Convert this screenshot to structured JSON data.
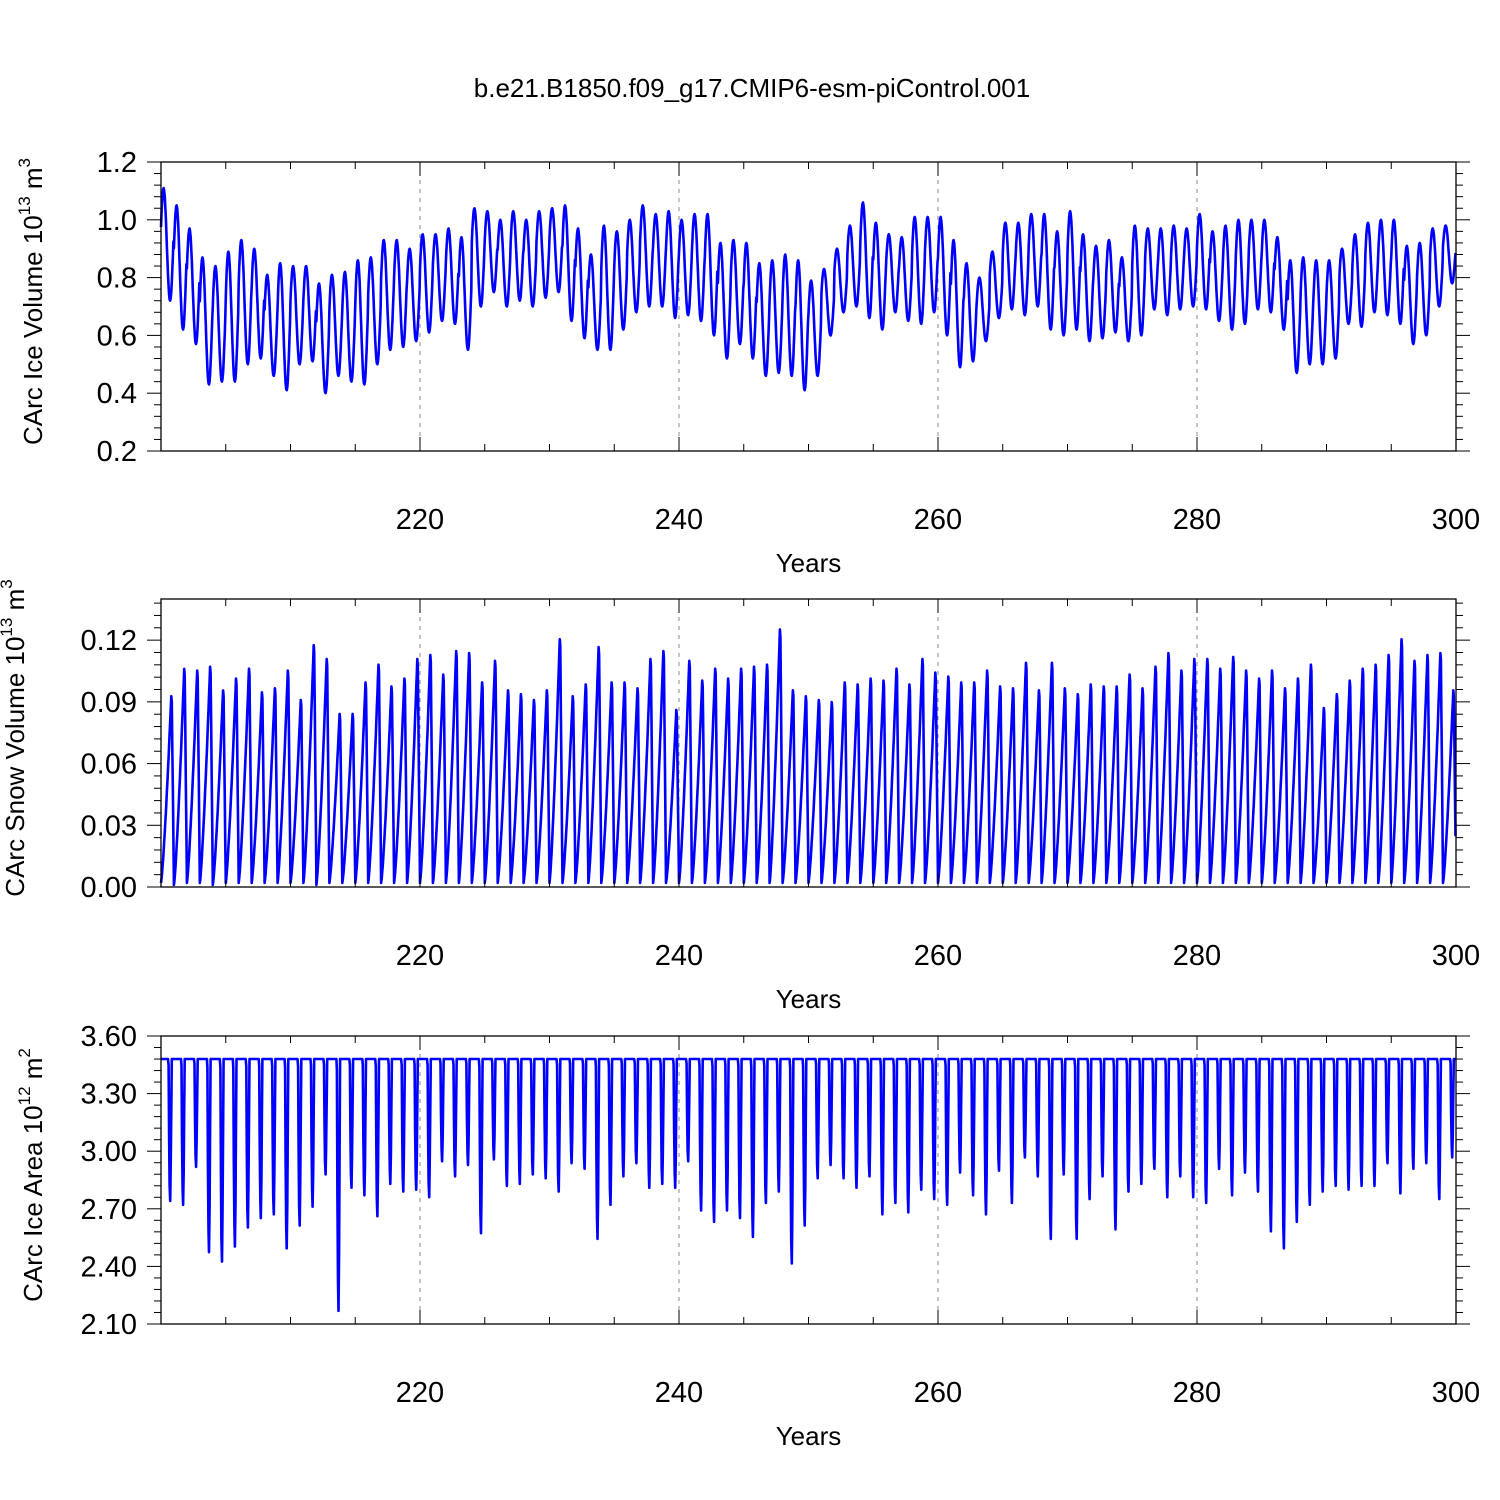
{
  "figure": {
    "title": "b.e21.B1850.f09_g17.CMIP6-esm-piControl.001"
  },
  "chart_data": [
    {
      "type": "line",
      "panel": "ice-volume",
      "title": "",
      "xlabel": "Years",
      "ylabel": "CArc Ice Volume 10^13 m^3",
      "ylabel_parts": {
        "base": "CArc Ice Volume 10",
        "exp": "13",
        "unit": " m",
        "unit_exp": "3"
      },
      "xlim": [
        200,
        300
      ],
      "ylim": [
        0.2,
        1.2
      ],
      "x_ticks": [
        220,
        240,
        260,
        280,
        300
      ],
      "y_ticks": [
        "0.2",
        "0.4",
        "0.6",
        "0.8",
        "1.0",
        "1.2"
      ],
      "x_gridlines": [
        220,
        240,
        260,
        280
      ],
      "grid": "x-dashed",
      "series": [
        {
          "color": "#0000ff",
          "cycle_months": 12,
          "annual_max": [
            1.11,
            1.05,
            0.97,
            0.87,
            0.84,
            0.89,
            0.93,
            0.9,
            0.81,
            0.85,
            0.84,
            0.84,
            0.78,
            0.81,
            0.82,
            0.86,
            0.87,
            0.93,
            0.93,
            0.9,
            0.95,
            0.95,
            0.97,
            0.94,
            1.04,
            1.03,
            1.0,
            1.03,
            1.0,
            1.03,
            1.04,
            1.05,
            0.97,
            0.88,
            0.98,
            0.96,
            1.0,
            1.05,
            1.02,
            1.03,
            1.0,
            1.02,
            1.02,
            0.92,
            0.93,
            0.92,
            0.85,
            0.86,
            0.88,
            0.86,
            0.79,
            0.83,
            0.9,
            0.98,
            1.06,
            0.99,
            0.95,
            0.94,
            1.01,
            1.01,
            1.01,
            0.93,
            0.85,
            0.8,
            0.89,
            0.99,
            0.99,
            1.02,
            1.02,
            0.96,
            1.03,
            0.95,
            0.91,
            0.93,
            0.87,
            0.98,
            0.97,
            0.97,
            0.98,
            0.97,
            1.02,
            0.96,
            0.98,
            1.0,
            1.0,
            1.0,
            0.94,
            0.86,
            0.87,
            0.86,
            0.86,
            0.9,
            0.95,
            0.99,
            1.0,
            1.0,
            0.91,
            0.92,
            0.97,
            0.98
          ],
          "annual_min": [
            0.72,
            0.62,
            0.57,
            0.43,
            0.44,
            0.44,
            0.5,
            0.52,
            0.46,
            0.41,
            0.5,
            0.51,
            0.4,
            0.46,
            0.44,
            0.43,
            0.5,
            0.55,
            0.56,
            0.58,
            0.61,
            0.65,
            0.64,
            0.55,
            0.7,
            0.75,
            0.7,
            0.72,
            0.7,
            0.73,
            0.75,
            0.65,
            0.59,
            0.55,
            0.55,
            0.62,
            0.68,
            0.7,
            0.7,
            0.66,
            0.67,
            0.65,
            0.6,
            0.52,
            0.57,
            0.52,
            0.46,
            0.47,
            0.46,
            0.41,
            0.46,
            0.6,
            0.68,
            0.7,
            0.66,
            0.62,
            0.68,
            0.65,
            0.64,
            0.68,
            0.6,
            0.49,
            0.51,
            0.58,
            0.66,
            0.69,
            0.67,
            0.7,
            0.62,
            0.6,
            0.62,
            0.58,
            0.59,
            0.61,
            0.58,
            0.6,
            0.69,
            0.67,
            0.69,
            0.7,
            0.69,
            0.65,
            0.62,
            0.64,
            0.69,
            0.68,
            0.62,
            0.47,
            0.5,
            0.5,
            0.52,
            0.64,
            0.63,
            0.68,
            0.67,
            0.64,
            0.57,
            0.6,
            0.7,
            0.78
          ]
        }
      ]
    },
    {
      "type": "line",
      "panel": "snow-volume",
      "title": "",
      "xlabel": "Years",
      "ylabel": "CArc Snow Volume 10^13 m^3",
      "ylabel_parts": {
        "base": "CArc Snow Volume 10",
        "exp": "13",
        "unit": " m",
        "unit_exp": "3"
      },
      "xlim": [
        200,
        300
      ],
      "ylim": [
        0.0,
        0.14
      ],
      "x_ticks": [
        220,
        240,
        260,
        280,
        300
      ],
      "y_ticks": [
        "0.00",
        "0.03",
        "0.06",
        "0.09",
        "0.12"
      ],
      "x_gridlines": [
        220,
        240,
        260,
        280
      ],
      "grid": "x-dashed",
      "series": [
        {
          "color": "#0000ff",
          "cycle_months": 12,
          "annual_max": [
            0.097,
            0.111,
            0.11,
            0.112,
            0.1,
            0.106,
            0.111,
            0.099,
            0.101,
            0.11,
            0.095,
            0.123,
            0.116,
            0.088,
            0.088,
            0.104,
            0.113,
            0.102,
            0.106,
            0.116,
            0.118,
            0.108,
            0.12,
            0.119,
            0.104,
            0.115,
            0.1,
            0.098,
            0.095,
            0.1,
            0.126,
            0.097,
            0.103,
            0.122,
            0.104,
            0.104,
            0.101,
            0.116,
            0.12,
            0.09,
            0.115,
            0.105,
            0.111,
            0.106,
            0.111,
            0.112,
            0.113,
            0.131,
            0.1,
            0.097,
            0.095,
            0.094,
            0.104,
            0.103,
            0.106,
            0.105,
            0.111,
            0.103,
            0.116,
            0.109,
            0.107,
            0.104,
            0.104,
            0.11,
            0.102,
            0.101,
            0.114,
            0.1,
            0.114,
            0.101,
            0.098,
            0.103,
            0.102,
            0.102,
            0.108,
            0.101,
            0.112,
            0.119,
            0.11,
            0.116,
            0.116,
            0.111,
            0.117,
            0.11,
            0.106,
            0.11,
            0.101,
            0.106,
            0.113,
            0.091,
            0.098,
            0.105,
            0.111,
            0.113,
            0.118,
            0.126,
            0.115,
            0.118,
            0.119,
            0.1
          ],
          "annual_min": [
            0.002,
            0.001,
            0.002,
            0.002,
            0.001,
            0.002,
            0.002,
            0.002,
            0.002,
            0.002,
            0.002,
            0.002,
            0.001,
            0.002,
            0.002,
            0.002,
            0.002,
            0.002,
            0.002,
            0.002,
            0.002,
            0.002,
            0.002,
            0.002,
            0.002,
            0.002,
            0.002,
            0.002,
            0.002,
            0.002,
            0.002,
            0.002,
            0.002,
            0.002,
            0.002,
            0.002,
            0.002,
            0.002,
            0.002,
            0.002,
            0.002,
            0.002,
            0.002,
            0.002,
            0.002,
            0.002,
            0.002,
            0.002,
            0.002,
            0.002,
            0.002,
            0.002,
            0.002,
            0.002,
            0.002,
            0.002,
            0.002,
            0.002,
            0.002,
            0.002,
            0.002,
            0.002,
            0.002,
            0.002,
            0.002,
            0.002,
            0.002,
            0.002,
            0.002,
            0.002,
            0.002,
            0.002,
            0.002,
            0.002,
            0.002,
            0.002,
            0.002,
            0.002,
            0.002,
            0.002,
            0.002,
            0.002,
            0.002,
            0.002,
            0.002,
            0.002,
            0.002,
            0.002,
            0.002,
            0.002,
            0.002,
            0.002,
            0.002,
            0.002,
            0.002,
            0.002,
            0.002,
            0.002,
            0.002,
            0.002
          ]
        }
      ]
    },
    {
      "type": "line",
      "panel": "ice-area",
      "title": "",
      "xlabel": "Years",
      "ylabel": "CArc Ice Area 10^12 m^2",
      "ylabel_parts": {
        "base": "CArc Ice Area 10",
        "exp": "12",
        "unit": " m",
        "unit_exp": "2"
      },
      "xlim": [
        200,
        300
      ],
      "ylim": [
        2.1,
        3.6
      ],
      "x_ticks": [
        220,
        240,
        260,
        280,
        300
      ],
      "y_ticks": [
        "2.10",
        "2.40",
        "2.70",
        "3.00",
        "3.30",
        "3.60"
      ],
      "x_gridlines": [
        220,
        240,
        260,
        280
      ],
      "grid": "x-dashed",
      "series": [
        {
          "color": "#0000ff",
          "cycle_months": 12,
          "annual_max": [
            3.48,
            3.48,
            3.48,
            3.48,
            3.48,
            3.48,
            3.48,
            3.48,
            3.48,
            3.48,
            3.48,
            3.48,
            3.48,
            3.48,
            3.48,
            3.48,
            3.48,
            3.48,
            3.48,
            3.48,
            3.48,
            3.48,
            3.48,
            3.48,
            3.48,
            3.48,
            3.48,
            3.48,
            3.48,
            3.48,
            3.48,
            3.48,
            3.48,
            3.48,
            3.48,
            3.48,
            3.48,
            3.48,
            3.48,
            3.48,
            3.48,
            3.48,
            3.48,
            3.48,
            3.48,
            3.48,
            3.48,
            3.48,
            3.48,
            3.48,
            3.48,
            3.48,
            3.48,
            3.48,
            3.48,
            3.48,
            3.48,
            3.48,
            3.48,
            3.48,
            3.48,
            3.48,
            3.48,
            3.48,
            3.48,
            3.48,
            3.48,
            3.48,
            3.48,
            3.48,
            3.48,
            3.48,
            3.48,
            3.48,
            3.48,
            3.48,
            3.48,
            3.48,
            3.48,
            3.48,
            3.48,
            3.48,
            3.48,
            3.48,
            3.48,
            3.48,
            3.48,
            3.48,
            3.48,
            3.48,
            3.48,
            3.48,
            3.48,
            3.48,
            3.48,
            3.48,
            3.48,
            3.48,
            3.48,
            3.48
          ],
          "annual_min": [
            2.73,
            2.71,
            2.91,
            2.46,
            2.41,
            2.49,
            2.59,
            2.64,
            2.66,
            2.48,
            2.6,
            2.7,
            2.87,
            2.15,
            2.8,
            2.76,
            2.65,
            2.82,
            2.78,
            2.79,
            2.75,
            2.94,
            2.86,
            2.92,
            2.56,
            2.95,
            2.81,
            2.82,
            2.87,
            2.85,
            2.78,
            2.93,
            2.9,
            2.53,
            2.71,
            2.86,
            2.93,
            2.8,
            2.82,
            2.8,
            2.94,
            2.68,
            2.62,
            2.68,
            2.64,
            2.54,
            2.72,
            2.78,
            2.4,
            2.6,
            2.85,
            2.92,
            2.85,
            2.8,
            2.86,
            2.66,
            2.72,
            2.67,
            2.79,
            2.74,
            2.71,
            2.88,
            2.76,
            2.66,
            2.89,
            2.72,
            2.96,
            2.86,
            2.53,
            2.87,
            2.53,
            2.74,
            2.86,
            2.58,
            2.78,
            2.82,
            2.9,
            2.75,
            2.86,
            2.75,
            2.72,
            2.9,
            2.76,
            2.88,
            2.78,
            2.57,
            2.48,
            2.62,
            2.71,
            2.78,
            2.81,
            2.79,
            2.81,
            2.81,
            2.93,
            2.77,
            2.9,
            2.93,
            2.74,
            2.96
          ]
        }
      ]
    }
  ]
}
